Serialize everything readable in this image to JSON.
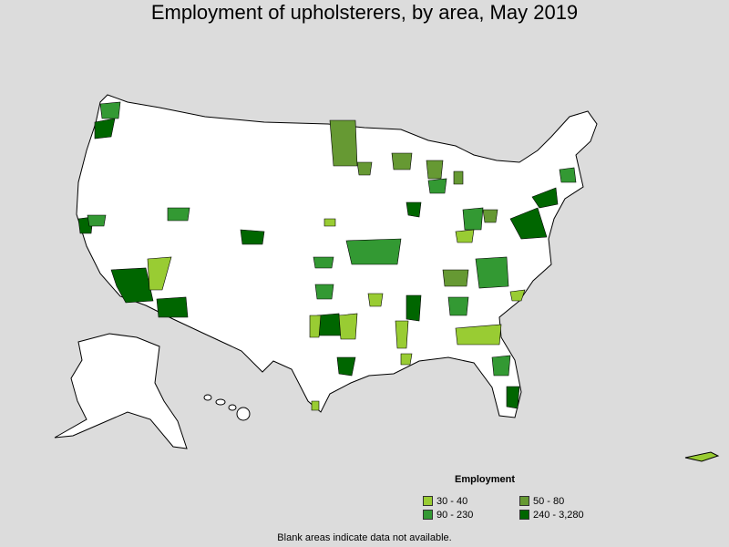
{
  "title": "Employment of upholsterers, by area, May 2019",
  "legend": {
    "title": "Employment",
    "items": [
      {
        "label": "30 - 40",
        "color": "#99cc33"
      },
      {
        "label": "50 - 80",
        "color": "#669933"
      },
      {
        "label": "90 - 230",
        "color": "#339933"
      },
      {
        "label": "240 - 3,280",
        "color": "#006600"
      }
    ]
  },
  "note": "Blank areas indicate data not available.",
  "colors": {
    "background": "#dcdcdc",
    "land": "#ffffff",
    "border": "#000000"
  }
}
